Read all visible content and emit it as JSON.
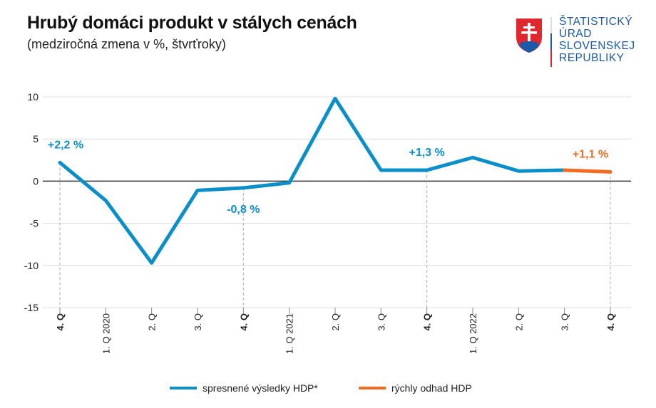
{
  "header": {
    "title": "Hrubý domáci produkt v stálych cenách",
    "subtitle": "(medziročná zmena v %, štvrťroky)"
  },
  "logo": {
    "lines": [
      "ŠTATISTICKÝ",
      "ÚRAD",
      "SLOVENSKEJ",
      "REPUBLIKY"
    ]
  },
  "chart_data": {
    "type": "line",
    "title": "Hrubý domáci produkt v stálych cenách",
    "subtitle": "(medziročná zmena v %, štvrťroky)",
    "categories": [
      "4. Q",
      "1. Q 2020",
      "2. Q",
      "3. Q",
      "4. Q",
      "1. Q 2021",
      "2. Q",
      "3. Q",
      "4. Q",
      "1. Q 2022",
      "2. Q",
      "3. Q",
      "4. Q"
    ],
    "bold_categories": [
      0,
      4,
      8,
      12
    ],
    "yticks": [
      10,
      5,
      0,
      -5,
      -10,
      -15
    ],
    "ylim": [
      -15,
      10
    ],
    "grid": true,
    "series": [
      {
        "name": "spresnené výsledky HDP*",
        "color": "#0a8fc8",
        "values": [
          2.2,
          -2.3,
          -9.7,
          -1.1,
          -0.8,
          -0.2,
          9.8,
          1.3,
          1.3,
          2.8,
          1.2,
          1.3,
          null
        ]
      },
      {
        "name": "rýchly odhad HDP",
        "color": "#f26b21",
        "values": [
          null,
          null,
          null,
          null,
          null,
          null,
          null,
          null,
          null,
          null,
          null,
          1.3,
          1.1
        ]
      }
    ],
    "annotations": [
      {
        "index": 0,
        "text": "+2,2 %",
        "color": "#0a8fc8"
      },
      {
        "index": 4,
        "text": "-0,8 %",
        "color": "#0a8fc8"
      },
      {
        "index": 8,
        "text": "+1,3 %",
        "color": "#0a8fc8"
      },
      {
        "index": 12,
        "text": "+1,1 %",
        "color": "#f26b21"
      }
    ],
    "legend_position": "bottom"
  }
}
